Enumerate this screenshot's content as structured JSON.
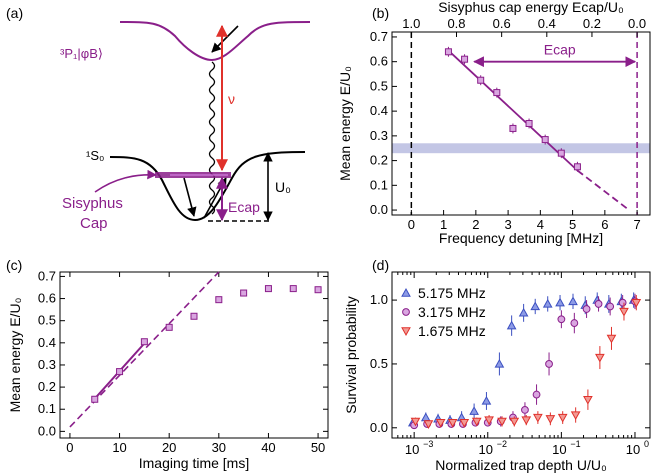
{
  "colors": {
    "purple": "#8a1f8a",
    "red": "#e0312b",
    "blue": "#3b4fc0",
    "band": "#b8bce0",
    "black": "#000000"
  },
  "panel_a": {
    "label": "(a)",
    "excited_state_label": "³P₁|φB⟩",
    "ground_state_label": "¹S₀",
    "nu_label": "ν",
    "sisyphus_label_1": "Sisyphus",
    "sisyphus_label_2": "Cap",
    "ecap_label": "Ecap",
    "u0_label": "U₀"
  },
  "chart_data": [
    {
      "type": "scatter",
      "label": "(b)",
      "xlabel": "Frequency detuning [MHz]",
      "ylabel": "Mean energy E/U₀",
      "top_xlabel": "Sisyphus cap energy Ecap/U₀",
      "xlim": [
        -0.6,
        7.4
      ],
      "ylim": [
        -0.02,
        0.72
      ],
      "xticks": [
        0,
        1,
        2,
        3,
        4,
        5,
        6,
        7
      ],
      "yticks": [
        0.0,
        0.1,
        0.2,
        0.3,
        0.4,
        0.5,
        0.6,
        0.7
      ],
      "top_ticks": [
        1.0,
        0.8,
        0.6,
        0.4,
        0.2,
        0.0
      ],
      "top_tick_labels": [
        "1.0",
        "0.8",
        "0.6",
        "0.4",
        "0.2",
        "0.0"
      ],
      "points": [
        {
          "x": 1.15,
          "y": 0.64,
          "err": 0.02
        },
        {
          "x": 1.65,
          "y": 0.61,
          "err": 0.02
        },
        {
          "x": 2.15,
          "y": 0.525,
          "err": 0.02
        },
        {
          "x": 2.65,
          "y": 0.475,
          "err": 0.02
        },
        {
          "x": 3.15,
          "y": 0.33,
          "err": 0.02
        },
        {
          "x": 3.65,
          "y": 0.35,
          "err": 0.02
        },
        {
          "x": 4.15,
          "y": 0.285,
          "err": 0.02
        },
        {
          "x": 4.65,
          "y": 0.23,
          "err": 0.02
        },
        {
          "x": 5.15,
          "y": 0.175,
          "err": 0.02
        }
      ],
      "fit_solid": [
        [
          1.15,
          0.645
        ],
        [
          5.15,
          0.16
        ]
      ],
      "fit_dashed": [
        [
          5.15,
          0.16
        ],
        [
          6.75,
          0.0
        ]
      ],
      "band": [
        0.23,
        0.27
      ],
      "vline_black": 0.0,
      "vline_purple": 7.0,
      "ecap_arrow": {
        "x_from": 1.95,
        "x_to": 7.0,
        "y": 0.6,
        "label": "Ecap"
      }
    },
    {
      "type": "scatter",
      "label": "(c)",
      "xlabel": "Imaging time [ms]",
      "ylabel": "Mean energy E/U₀",
      "xlim": [
        -2,
        52
      ],
      "ylim": [
        -0.03,
        0.72
      ],
      "xticks": [
        0,
        10,
        20,
        30,
        40,
        50
      ],
      "yticks": [
        0.0,
        0.1,
        0.2,
        0.3,
        0.4,
        0.5,
        0.6,
        0.7
      ],
      "points": [
        {
          "x": 5,
          "y": 0.145
        },
        {
          "x": 10,
          "y": 0.27
        },
        {
          "x": 15,
          "y": 0.405
        },
        {
          "x": 20,
          "y": 0.47
        },
        {
          "x": 25,
          "y": 0.52
        },
        {
          "x": 30,
          "y": 0.595
        },
        {
          "x": 35,
          "y": 0.625
        },
        {
          "x": 40,
          "y": 0.645
        },
        {
          "x": 45,
          "y": 0.645
        },
        {
          "x": 50,
          "y": 0.64
        }
      ],
      "fit_solid": [
        [
          4.5,
          0.135
        ],
        [
          15.5,
          0.41
        ]
      ],
      "fit_dashed": [
        [
          0,
          0.02
        ],
        [
          30,
          0.72
        ]
      ]
    },
    {
      "type": "scatter",
      "label": "(d)",
      "xlabel": "Normalized trap depth U/U₀",
      "ylabel": "Survival probability",
      "xscale": "log",
      "xlim": [
        0.0005,
        1.6
      ],
      "ylim": [
        -0.08,
        1.22
      ],
      "xtick_exponents": [
        -3,
        -2,
        -1,
        0
      ],
      "yticks": [
        0.0,
        0.5,
        1.0
      ],
      "ytick_labels": [
        "0.0",
        "0.5",
        "1.0"
      ],
      "legend_position": "top-left",
      "series": [
        {
          "name": "5.175 MHz",
          "color": "#3b4fc0",
          "marker": "triangle-up",
          "x": [
            0.001,
            0.0015,
            0.0022,
            0.0032,
            0.0046,
            0.0068,
            0.01,
            0.015,
            0.022,
            0.032,
            0.046,
            0.068,
            0.1,
            0.15,
            0.22,
            0.32,
            0.46,
            0.68,
            1.0
          ],
          "y": [
            0.04,
            0.08,
            0.07,
            0.06,
            0.08,
            0.13,
            0.21,
            0.5,
            0.8,
            0.9,
            0.95,
            0.97,
            0.98,
            0.99,
            0.96,
            1.0,
            0.97,
            0.99,
            1.0
          ],
          "err": [
            0.03,
            0.04,
            0.04,
            0.04,
            0.05,
            0.06,
            0.07,
            0.09,
            0.08,
            0.07,
            0.06,
            0.06,
            0.06,
            0.06,
            0.07,
            0.06,
            0.07,
            0.06,
            0.06
          ]
        },
        {
          "name": "3.175 MHz",
          "color": "#8a1f8a",
          "marker": "circle",
          "x": [
            0.001,
            0.0015,
            0.0022,
            0.0032,
            0.0046,
            0.0068,
            0.01,
            0.015,
            0.022,
            0.032,
            0.046,
            0.068,
            0.1,
            0.15,
            0.22,
            0.32,
            0.46,
            0.68,
            1.0
          ],
          "y": [
            0.02,
            0.03,
            0.03,
            0.03,
            0.03,
            0.04,
            0.04,
            0.05,
            0.08,
            0.14,
            0.26,
            0.5,
            0.85,
            0.82,
            0.93,
            0.97,
            0.95,
            0.98,
            0.99
          ],
          "err": [
            0.03,
            0.03,
            0.03,
            0.03,
            0.03,
            0.03,
            0.03,
            0.04,
            0.05,
            0.06,
            0.08,
            0.09,
            0.07,
            0.08,
            0.07,
            0.06,
            0.07,
            0.06,
            0.06
          ]
        },
        {
          "name": "1.675 MHz",
          "color": "#e0312b",
          "marker": "triangle-down",
          "x": [
            0.001,
            0.0015,
            0.0022,
            0.0032,
            0.0046,
            0.0068,
            0.01,
            0.015,
            0.022,
            0.032,
            0.046,
            0.068,
            0.1,
            0.15,
            0.22,
            0.32,
            0.46,
            0.68,
            1.0
          ],
          "y": [
            0.05,
            0.03,
            0.04,
            0.04,
            0.04,
            0.05,
            0.06,
            0.05,
            0.05,
            0.06,
            0.08,
            0.07,
            0.08,
            0.1,
            0.22,
            0.55,
            0.7,
            0.91,
            0.98
          ],
          "err": [
            0.03,
            0.03,
            0.03,
            0.03,
            0.03,
            0.03,
            0.04,
            0.04,
            0.04,
            0.04,
            0.05,
            0.05,
            0.05,
            0.06,
            0.08,
            0.09,
            0.09,
            0.07,
            0.06
          ]
        }
      ]
    }
  ]
}
